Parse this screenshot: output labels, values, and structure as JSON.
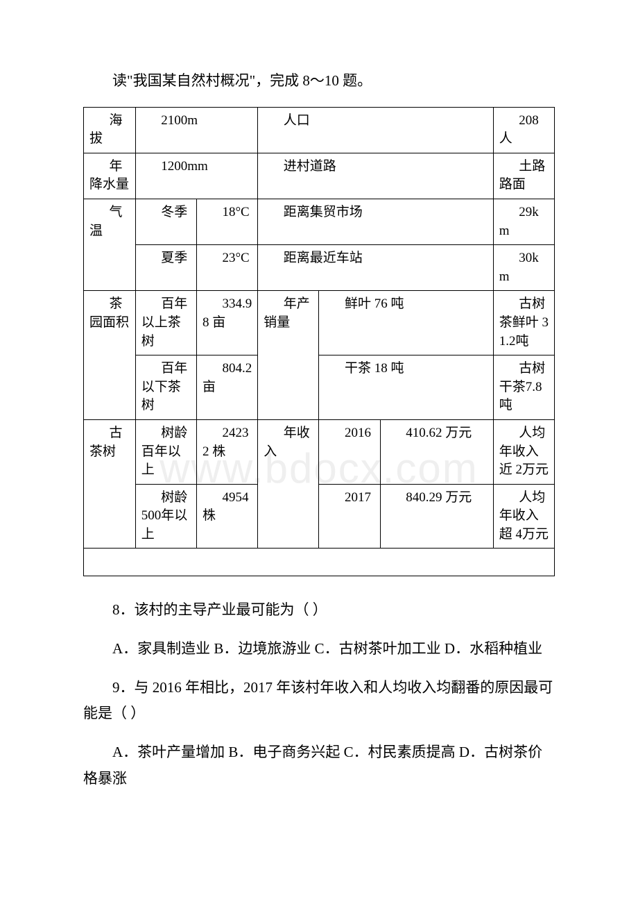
{
  "intro": "读\"我国某自然村概况\"，完成 8～10 题。",
  "t": {
    "r1": {
      "a": "海拔",
      "b": "2100m",
      "c": "人口",
      "d": "208人"
    },
    "r2": {
      "a": "年降水量",
      "b": "1200mm",
      "c": "进村道路",
      "d": "土路路面"
    },
    "r3": {
      "a": "气温",
      "b": "冬季",
      "c": "18°C",
      "d": "距离集贸市场",
      "e": "29km"
    },
    "r4": {
      "b": "夏季",
      "c": "23°C",
      "d": "距离最近车站",
      "e": "30km"
    },
    "r5": {
      "a": "茶园面积",
      "b": "百年以上茶树",
      "c": "334.98 亩",
      "d": "年产销量",
      "e": "鲜叶 76 吨",
      "f": "古树茶鲜叶 31.2吨"
    },
    "r6": {
      "b": "百年以下茶树",
      "c": "804.2 亩",
      "e": "干茶 18 吨",
      "f": "古树干茶7.8 吨"
    },
    "r7": {
      "a": "古茶树",
      "b": "树龄百年以上",
      "c": "24232 株",
      "d": "年收入",
      "e": "2016",
      "f": "410.62 万元",
      "g": "人均年收入近 2万元"
    },
    "r8": {
      "b": "树龄 500年以上",
      "c": "4954 株",
      "e": "2017",
      "f": "840.29 万元",
      "g": "人均年收入超 4万元"
    }
  },
  "q8": "8．该村的主导产业最可能为（ ）",
  "q8opts": "A．家具制造业 B．边境旅游业 C．古树茶叶加工业 D．水稻种植业",
  "q9": "9．与 2016 年相比，2017 年该村年收入和人均收入均翻番的原因最可能是（ ）",
  "q9opts": "A．茶叶产量增加 B．电子商务兴起 C．村民素质提高 D．古树茶价格暴涨",
  "watermark": "www.bdocx.com"
}
